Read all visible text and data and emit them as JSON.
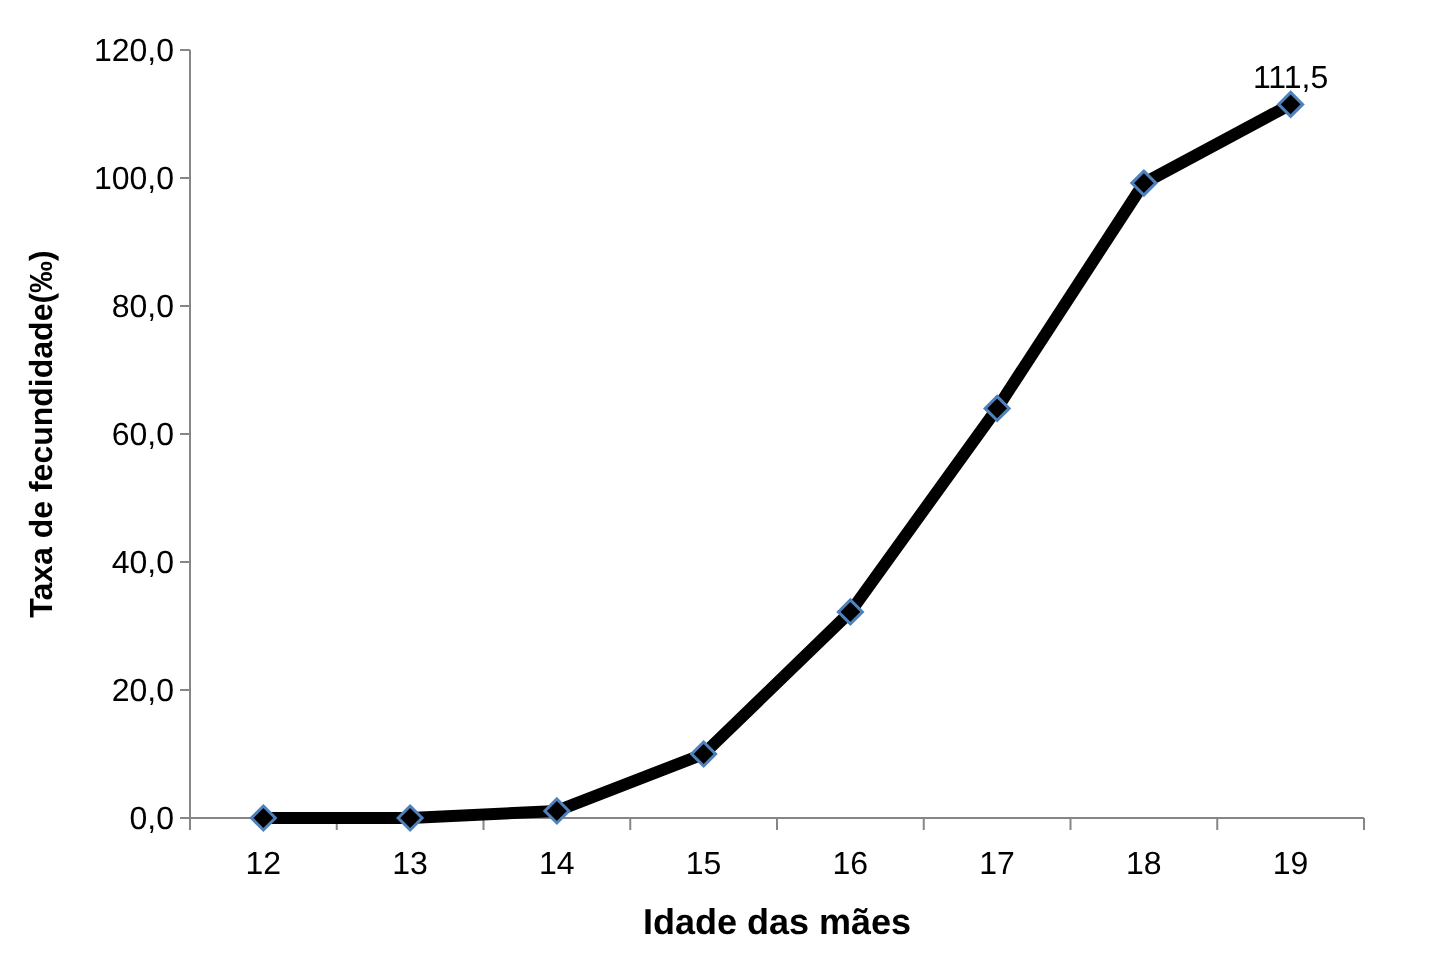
{
  "chart_data": {
    "type": "line",
    "xlabel": "Idade das mães",
    "ylabel": "Taxa de fecundidade(‰)",
    "categories": [
      "12",
      "13",
      "14",
      "15",
      "16",
      "17",
      "18",
      "19"
    ],
    "series": [
      {
        "color": "#000000",
        "values": [
          0,
          0,
          1.1,
          10,
          32.2,
          64,
          99.2,
          111.5
        ]
      }
    ],
    "ylim": [
      0,
      120
    ],
    "yticks": [
      {
        "value": 0,
        "label": "0,0"
      },
      {
        "value": 20,
        "label": "20,0"
      },
      {
        "value": 40,
        "label": "40,0"
      },
      {
        "value": 60,
        "label": "60,0"
      },
      {
        "value": 80,
        "label": "80,0"
      },
      {
        "value": 100,
        "label": "100,0"
      },
      {
        "value": 120,
        "label": "120,0"
      }
    ],
    "annotations": [
      {
        "text": "111,5",
        "x": "19",
        "y": 111.5
      }
    ],
    "marker": "diamond",
    "line_style": "solid",
    "grid": false
  }
}
